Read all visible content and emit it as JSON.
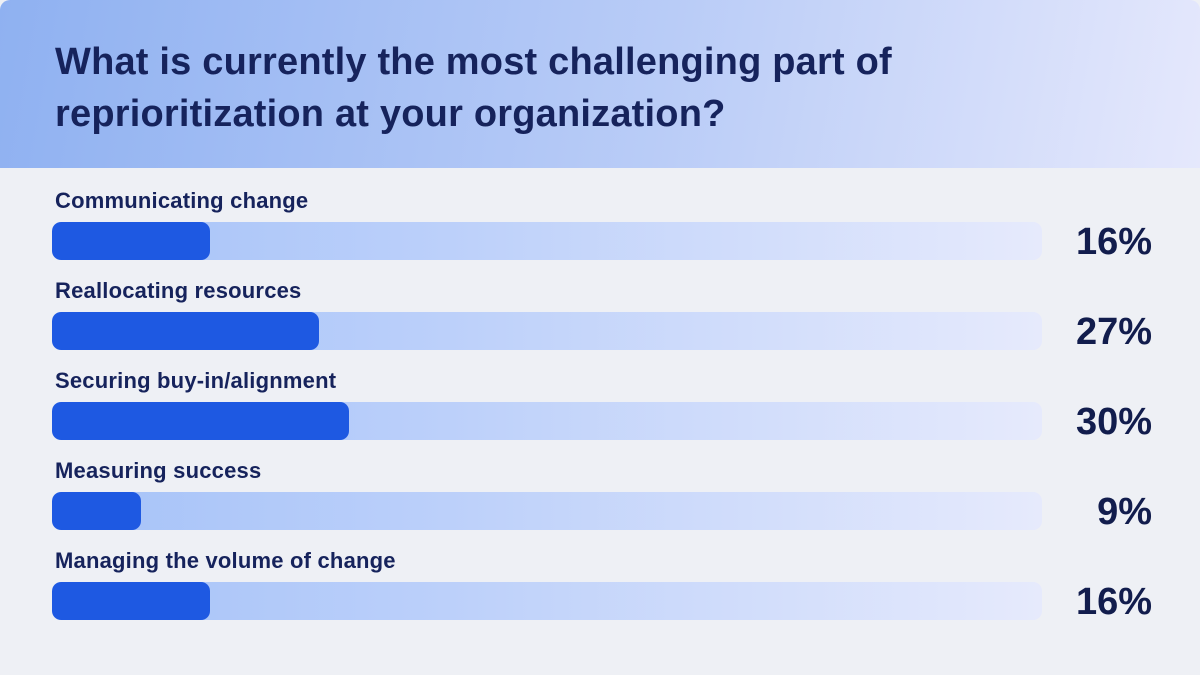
{
  "chart_data": {
    "type": "bar",
    "orientation": "horizontal",
    "title": "What is currently the most challenging part of reprioritization at your organization?",
    "categories": [
      "Communicating change",
      "Reallocating resources",
      "Securing buy-in/alignment",
      "Measuring success",
      "Managing the volume of change"
    ],
    "values": [
      16,
      27,
      30,
      9,
      16
    ],
    "value_labels": [
      "16%",
      "27%",
      "30%",
      "9%",
      "16%"
    ],
    "unit": "%",
    "xlim": [
      0,
      100
    ],
    "grid": false,
    "legend": false,
    "value_label_position": "right"
  },
  "colors": {
    "page_background": "#eef0f5",
    "header_gradient_start": "#8fb1f1",
    "header_gradient_end": "#e5e8fc",
    "bar_fill": "#1e59e2",
    "bar_track_gradient_start": "#a5c2f8",
    "bar_track_gradient_end": "#e6eafc",
    "text_navy": "#16235c"
  }
}
